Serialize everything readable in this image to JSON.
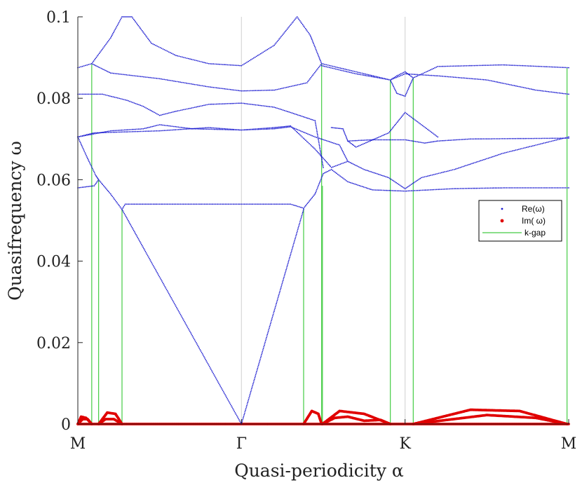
{
  "chart_data": {
    "type": "scatter",
    "title": "",
    "xlabel": "Quasi-periodicity α",
    "ylabel": "Quasifrequency ω",
    "xlim": [
      0,
      3
    ],
    "ylim": [
      0,
      0.1
    ],
    "x_ticks": [
      {
        "value": 0,
        "label": "M"
      },
      {
        "value": 1,
        "label": "Γ"
      },
      {
        "value": 2,
        "label": "K"
      },
      {
        "value": 3,
        "label": "M"
      }
    ],
    "y_ticks": [
      {
        "value": 0,
        "label": "0"
      },
      {
        "value": 0.02,
        "label": "0.02"
      },
      {
        "value": 0.04,
        "label": "0.04"
      },
      {
        "value": 0.06,
        "label": "0.06"
      },
      {
        "value": 0.08,
        "label": "0.08"
      },
      {
        "value": 0.1,
        "label": "0.1"
      }
    ],
    "colors": {
      "real": "#1a1ad0",
      "imag": "#e00000",
      "kgap": "#44cc44",
      "grid": "#d8d8d8",
      "axis": "#222222"
    },
    "legend": {
      "position": "right",
      "entries": [
        {
          "label": "Re(ω)",
          "color": "#1a1ad0",
          "marker": "dot"
        },
        {
          "label": "Im( ω)",
          "color": "#e00000",
          "marker": "dot"
        },
        {
          "label": "k-gap",
          "color": "#44cc44",
          "marker": "line"
        }
      ]
    },
    "k_gaps": [
      {
        "x": 0.085,
        "top": 0.0885
      },
      {
        "x": 0.127,
        "top": 0.06
      },
      {
        "x": 0.27,
        "top": 0.0527
      },
      {
        "x": 1.38,
        "top": 0.0527
      },
      {
        "x": 1.49,
        "top": 0.0885
      },
      {
        "x": 1.495,
        "top": 0.0585
      },
      {
        "x": 1.91,
        "top": 0.0845
      },
      {
        "x": 2.05,
        "top": 0.085
      },
      {
        "x": 2.99,
        "top": 0.0875
      }
    ],
    "real_series": [
      {
        "name": "band-1",
        "points": [
          [
            0,
            0.0705
          ],
          [
            0.06,
            0.0652
          ],
          [
            0.11,
            0.061
          ],
          [
            0.127,
            0.06
          ],
          [
            0.2,
            0.0565
          ],
          [
            0.27,
            0.0527
          ],
          [
            0.29,
            0.054
          ],
          [
            0.5,
            0.054
          ],
          [
            1,
            0.054
          ],
          [
            1.3,
            0.054
          ],
          [
            1.38,
            0.053
          ],
          [
            1.45,
            0.0565
          ],
          [
            1.5,
            0.0615
          ],
          [
            1.55,
            0.0625
          ],
          [
            1.65,
            0.0595
          ],
          [
            1.8,
            0.0575
          ],
          [
            2,
            0.0572
          ],
          [
            2.3,
            0.0578
          ],
          [
            2.6,
            0.058
          ],
          [
            3,
            0.058
          ]
        ]
      },
      {
        "name": "band-2",
        "points": [
          [
            0,
            0.058
          ],
          [
            0.1,
            0.0585
          ],
          [
            0.127,
            0.06
          ]
        ]
      },
      {
        "name": "band-acoustic-left",
        "points": [
          [
            0.27,
            0.0527
          ],
          [
            1,
            0
          ]
        ]
      },
      {
        "name": "band-acoustic-right",
        "points": [
          [
            1,
            0
          ],
          [
            1.38,
            0.0527
          ]
        ]
      },
      {
        "name": "band-3",
        "points": [
          [
            0,
            0.0705
          ],
          [
            0.1,
            0.0715
          ],
          [
            0.5,
            0.072
          ],
          [
            0.8,
            0.0728
          ],
          [
            1,
            0.0722
          ],
          [
            1.2,
            0.0725
          ],
          [
            1.3,
            0.073
          ],
          [
            1.45,
            0.0705
          ],
          [
            1.6,
            0.0685
          ],
          [
            1.65,
            0.0645
          ],
          [
            1.75,
            0.0625
          ],
          [
            1.9,
            0.0605
          ],
          [
            2,
            0.0578
          ],
          [
            2.1,
            0.0605
          ],
          [
            2.3,
            0.0625
          ],
          [
            2.6,
            0.0665
          ],
          [
            3,
            0.0705
          ]
        ]
      },
      {
        "name": "band-4",
        "points": [
          [
            0,
            0.0705
          ],
          [
            0.2,
            0.072
          ],
          [
            0.4,
            0.0725
          ],
          [
            0.5,
            0.0735
          ],
          [
            0.7,
            0.0725
          ],
          [
            1,
            0.0722
          ],
          [
            1.2,
            0.0728
          ],
          [
            1.3,
            0.0732
          ],
          [
            1.45,
            0.0675
          ],
          [
            1.55,
            0.063
          ],
          [
            1.65,
            0.0645
          ]
        ]
      },
      {
        "name": "band-5",
        "points": [
          [
            1.55,
            0.0728
          ],
          [
            1.62,
            0.0725
          ],
          [
            1.65,
            0.0695
          ],
          [
            1.7,
            0.068
          ],
          [
            1.9,
            0.0715
          ],
          [
            2,
            0.0765
          ],
          [
            2.1,
            0.0735
          ],
          [
            2.2,
            0.0705
          ]
        ]
      },
      {
        "name": "band-6",
        "points": [
          [
            1.65,
            0.0695
          ],
          [
            1.8,
            0.0698
          ],
          [
            2,
            0.0698
          ],
          [
            2.12,
            0.069
          ],
          [
            2.2,
            0.0695
          ],
          [
            2.4,
            0.07
          ],
          [
            3,
            0.0702
          ]
        ]
      },
      {
        "name": "band-7",
        "points": [
          [
            0,
            0.081
          ],
          [
            0.15,
            0.081
          ],
          [
            0.3,
            0.0795
          ],
          [
            0.4,
            0.078
          ],
          [
            0.5,
            0.0758
          ],
          [
            0.6,
            0.0768
          ],
          [
            0.8,
            0.0785
          ],
          [
            1,
            0.0788
          ],
          [
            1.2,
            0.0778
          ],
          [
            1.3,
            0.0765
          ],
          [
            1.45,
            0.0745
          ],
          [
            1.5,
            0.063
          ]
        ]
      },
      {
        "name": "band-8",
        "points": [
          [
            0,
            0.0875
          ],
          [
            0.085,
            0.0885
          ],
          [
            0.2,
            0.0862
          ],
          [
            0.5,
            0.0848
          ],
          [
            0.8,
            0.0828
          ],
          [
            1,
            0.0818
          ],
          [
            1.2,
            0.082
          ],
          [
            1.4,
            0.0838
          ],
          [
            1.49,
            0.0885
          ],
          [
            1.7,
            0.0865
          ],
          [
            1.91,
            0.0845
          ],
          [
            2,
            0.086
          ],
          [
            2.2,
            0.0855
          ],
          [
            2.5,
            0.0845
          ],
          [
            2.8,
            0.082
          ],
          [
            3,
            0.081
          ]
        ]
      },
      {
        "name": "band-9",
        "points": [
          [
            0.085,
            0.0885
          ],
          [
            0.2,
            0.0948
          ],
          [
            0.27,
            0.1
          ],
          [
            0.33,
            0.1
          ],
          [
            0.45,
            0.0935
          ],
          [
            0.6,
            0.0905
          ],
          [
            0.8,
            0.0885
          ],
          [
            1,
            0.088
          ],
          [
            1.2,
            0.093
          ],
          [
            1.34,
            0.1
          ],
          [
            1.42,
            0.0955
          ],
          [
            1.49,
            0.0885
          ]
        ]
      },
      {
        "name": "band-10",
        "points": [
          [
            1.49,
            0.088
          ],
          [
            1.7,
            0.086
          ],
          [
            1.91,
            0.0845
          ],
          [
            1.95,
            0.0855
          ],
          [
            2,
            0.0865
          ],
          [
            2.05,
            0.085
          ],
          [
            2.2,
            0.0878
          ],
          [
            2.6,
            0.0882
          ],
          [
            3,
            0.0875
          ]
        ]
      },
      {
        "name": "band-11",
        "points": [
          [
            1.91,
            0.0845
          ],
          [
            1.95,
            0.0812
          ],
          [
            2,
            0.0805
          ],
          [
            2.05,
            0.085
          ]
        ]
      }
    ],
    "imag_series": [
      {
        "name": "imag-1",
        "points": [
          [
            0,
            0
          ],
          [
            0.02,
            0.0018
          ],
          [
            0.05,
            0.0015
          ],
          [
            0.085,
            0
          ]
        ]
      },
      {
        "name": "imag-2",
        "points": [
          [
            0,
            0
          ],
          [
            0.03,
            0.0012
          ],
          [
            0.06,
            0.0012
          ],
          [
            0.085,
            0
          ]
        ]
      },
      {
        "name": "imag-3",
        "points": [
          [
            0.127,
            0
          ],
          [
            0.18,
            0.0028
          ],
          [
            0.23,
            0.0025
          ],
          [
            0.27,
            0
          ]
        ]
      },
      {
        "name": "imag-4",
        "points": [
          [
            0.127,
            0
          ],
          [
            0.17,
            0.0012
          ],
          [
            0.22,
            0.0012
          ],
          [
            0.27,
            0
          ]
        ]
      },
      {
        "name": "imag-5",
        "points": [
          [
            1.38,
            0
          ],
          [
            1.43,
            0.0032
          ],
          [
            1.47,
            0.0025
          ],
          [
            1.49,
            0
          ]
        ]
      },
      {
        "name": "imag-6",
        "points": [
          [
            1.495,
            0
          ],
          [
            1.6,
            0.0032
          ],
          [
            1.75,
            0.0025
          ],
          [
            1.91,
            0
          ]
        ]
      },
      {
        "name": "imag-7",
        "points": [
          [
            1.495,
            0
          ],
          [
            1.57,
            0.0015
          ],
          [
            1.65,
            0.0018
          ],
          [
            1.75,
            0.0008
          ],
          [
            1.85,
            0.001
          ],
          [
            1.91,
            0
          ]
        ]
      },
      {
        "name": "imag-8",
        "points": [
          [
            2.05,
            0
          ],
          [
            2.4,
            0.0035
          ],
          [
            2.7,
            0.0032
          ],
          [
            2.99,
            0
          ]
        ]
      },
      {
        "name": "imag-9",
        "points": [
          [
            2.05,
            0
          ],
          [
            2.5,
            0.0022
          ],
          [
            2.8,
            0.0015
          ],
          [
            2.99,
            0
          ]
        ]
      },
      {
        "name": "imag-10",
        "points": [
          [
            0,
            0
          ],
          [
            3,
            0
          ]
        ]
      }
    ]
  }
}
